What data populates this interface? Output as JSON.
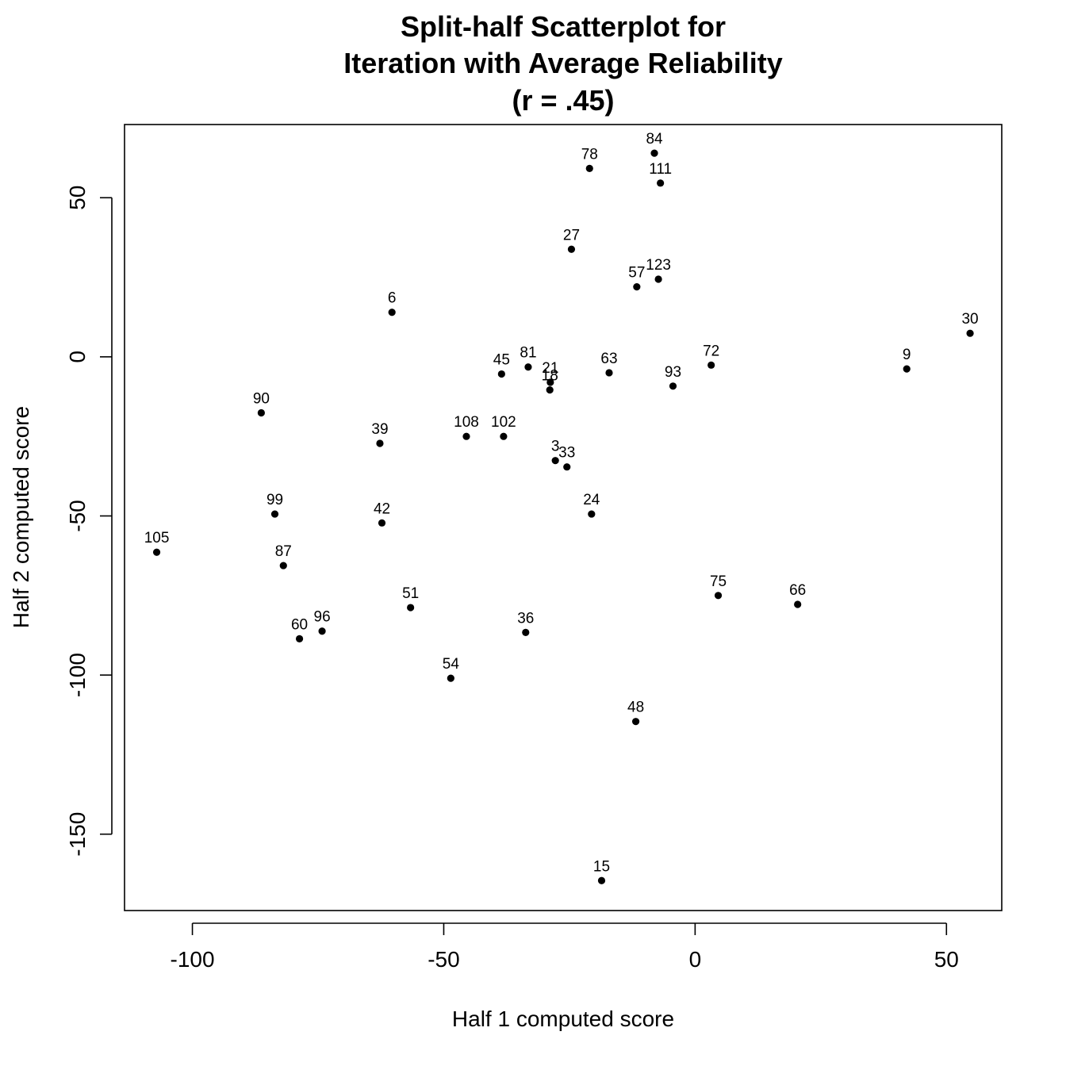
{
  "chart_data": {
    "type": "scatter",
    "title_lines": [
      "Split-half Scatterplot for",
      "Iteration with Average Reliability",
      "(r = .45)"
    ],
    "xlabel": "Half 1 computed score",
    "ylabel": "Half 2 computed score",
    "xlim": [
      -113.5,
      61
    ],
    "ylim": [
      -174,
      73
    ],
    "xticks": [
      -100,
      -50,
      0,
      50
    ],
    "xtick_labels": [
      "-100",
      "-50",
      "0",
      "50"
    ],
    "yticks": [
      -150,
      -100,
      -50,
      0,
      50
    ],
    "ytick_labels": [
      "-150",
      "-100",
      "-50",
      "0",
      "50"
    ],
    "grid": false,
    "points": [
      {
        "label": "84",
        "x": -8.1,
        "y": 64
      },
      {
        "label": "78",
        "x": -21,
        "y": 59.2
      },
      {
        "label": "111",
        "x": -6.9,
        "y": 54.6
      },
      {
        "label": "27",
        "x": -24.6,
        "y": 33.8
      },
      {
        "label": "57",
        "x": -11.6,
        "y": 22
      },
      {
        "label": "123",
        "x": -7.3,
        "y": 24.4
      },
      {
        "label": "6",
        "x": -60.3,
        "y": 14
      },
      {
        "label": "30",
        "x": 54.7,
        "y": 7.4
      },
      {
        "label": "9",
        "x": 42.1,
        "y": -3.8
      },
      {
        "label": "72",
        "x": 3.2,
        "y": -2.6
      },
      {
        "label": "63",
        "x": -17.1,
        "y": -5
      },
      {
        "label": "81",
        "x": -33.2,
        "y": -3.2
      },
      {
        "label": "45",
        "x": -38.5,
        "y": -5.4
      },
      {
        "label": "21",
        "x": -28.8,
        "y": -8
      },
      {
        "label": "18",
        "x": -28.9,
        "y": -10.4
      },
      {
        "label": "93",
        "x": -4.4,
        "y": -9.2
      },
      {
        "label": "90",
        "x": -86.3,
        "y": -17.6
      },
      {
        "label": "39",
        "x": -62.7,
        "y": -27.2
      },
      {
        "label": "108",
        "x": -45.5,
        "y": -25
      },
      {
        "label": "102",
        "x": -38.1,
        "y": -25
      },
      {
        "label": "3",
        "x": -27.8,
        "y": -32.6
      },
      {
        "label": "33",
        "x": -25.5,
        "y": -34.6
      },
      {
        "label": "24",
        "x": -20.6,
        "y": -49.4
      },
      {
        "label": "99",
        "x": -83.6,
        "y": -49.4
      },
      {
        "label": "42",
        "x": -62.3,
        "y": -52.2
      },
      {
        "label": "105",
        "x": -107.1,
        "y": -61.4
      },
      {
        "label": "87",
        "x": -81.9,
        "y": -65.6
      },
      {
        "label": "75",
        "x": 4.6,
        "y": -75
      },
      {
        "label": "66",
        "x": 20.4,
        "y": -77.8
      },
      {
        "label": "51",
        "x": -56.6,
        "y": -78.8
      },
      {
        "label": "60",
        "x": -78.7,
        "y": -88.6
      },
      {
        "label": "96",
        "x": -74.2,
        "y": -86.2
      },
      {
        "label": "36",
        "x": -33.7,
        "y": -86.6
      },
      {
        "label": "54",
        "x": -48.6,
        "y": -101
      },
      {
        "label": "48",
        "x": -11.8,
        "y": -114.6
      },
      {
        "label": "15",
        "x": -18.6,
        "y": -164.6
      }
    ]
  }
}
